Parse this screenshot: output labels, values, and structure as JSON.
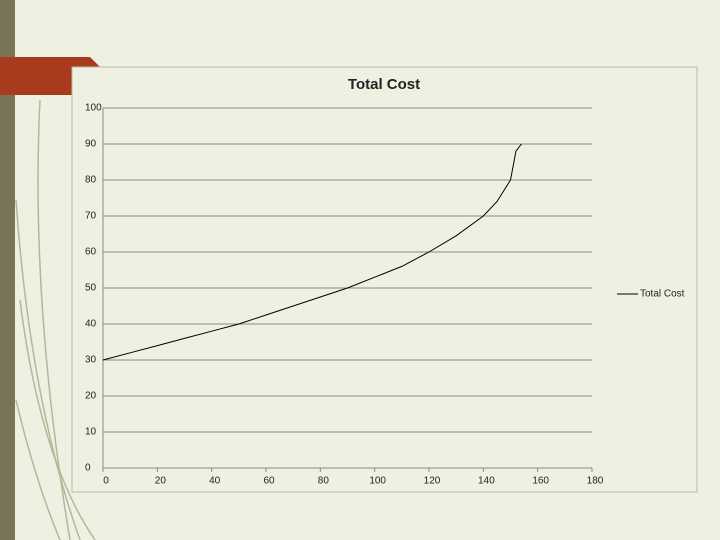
{
  "chart_data": {
    "type": "line",
    "title": "Total Cost",
    "x": [
      0,
      10,
      20,
      30,
      40,
      50,
      60,
      70,
      80,
      90,
      100,
      110,
      120,
      130,
      140,
      145,
      150,
      151,
      152,
      154
    ],
    "series": [
      {
        "name": "Total Cost",
        "color": "#000000",
        "values": [
          30,
          32,
          34,
          36,
          38,
          40,
          42.5,
          45,
          47.5,
          50,
          53,
          56,
          60,
          64.5,
          70,
          74,
          80,
          84,
          88,
          90
        ]
      }
    ],
    "xlim": [
      0,
      180
    ],
    "xticks": [
      0,
      20,
      40,
      60,
      80,
      100,
      120,
      140,
      160,
      180
    ],
    "ylim": [
      0,
      100
    ],
    "yticks": [
      0,
      10,
      20,
      30,
      40,
      50,
      60,
      70,
      80,
      90,
      100
    ],
    "grid": true,
    "legend": "right"
  }
}
